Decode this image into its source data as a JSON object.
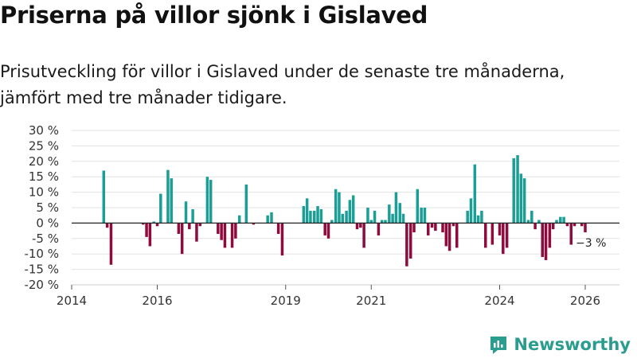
{
  "header": {
    "title": "Priserna på villor sjönk i Gislaved",
    "subtitle": "Prisutveckling för villor i Gislaved under de senaste tre månaderna, jämfört med tre månader tidigare."
  },
  "brand": {
    "name": "Newsworthy"
  },
  "colors": {
    "positive": "#1a9e95",
    "negative": "#8e0b3d",
    "grid": "#e3e3e3",
    "zero": "#222222",
    "brand": "#2a9d8f"
  },
  "chart_data": {
    "type": "bar",
    "title": "Priserna på villor sjönk i Gislaved",
    "xlabel": "",
    "ylabel": "",
    "xlim": [
      2014,
      2026.8
    ],
    "ylim": [
      -20,
      30
    ],
    "y_ticks": [
      30,
      25,
      20,
      15,
      10,
      5,
      0,
      -5,
      -10,
      -15,
      -20
    ],
    "y_tick_labels": [
      "30 %",
      "25 %",
      "20 %",
      "15 %",
      "10 %",
      "5 %",
      "0 %",
      "-5 %",
      "-10 %",
      "-15 %",
      "-20 %"
    ],
    "x_tick_labels": [
      {
        "year": 2014,
        "label": "2014"
      },
      {
        "year": 2016,
        "label": "2016"
      },
      {
        "year": 2019,
        "label": "2019"
      },
      {
        "year": 2021,
        "label": "2021"
      },
      {
        "year": 2024,
        "label": "2024"
      },
      {
        "year": 2026,
        "label": "2026"
      }
    ],
    "annotation": {
      "label": "−3 %",
      "x": 2026.0,
      "y": -3
    },
    "series": [
      {
        "name": "Prisutveckling",
        "points": [
          {
            "x": 2014.75,
            "y": 17
          },
          {
            "x": 2014.83,
            "y": -1.5
          },
          {
            "x": 2014.92,
            "y": -13.5
          },
          {
            "x": 2015.67,
            "y": -0.5
          },
          {
            "x": 2015.75,
            "y": -4.5
          },
          {
            "x": 2015.83,
            "y": -7.5
          },
          {
            "x": 2015.92,
            "y": 0.5
          },
          {
            "x": 2016.0,
            "y": -1
          },
          {
            "x": 2016.08,
            "y": 9.5
          },
          {
            "x": 2016.25,
            "y": 17.2
          },
          {
            "x": 2016.33,
            "y": 14.5
          },
          {
            "x": 2016.5,
            "y": -3.5
          },
          {
            "x": 2016.58,
            "y": -10
          },
          {
            "x": 2016.67,
            "y": 7
          },
          {
            "x": 2016.75,
            "y": -2
          },
          {
            "x": 2016.83,
            "y": 4.5
          },
          {
            "x": 2016.92,
            "y": -6
          },
          {
            "x": 2017.0,
            "y": -1
          },
          {
            "x": 2017.17,
            "y": 15
          },
          {
            "x": 2017.25,
            "y": 14
          },
          {
            "x": 2017.42,
            "y": -3.5
          },
          {
            "x": 2017.5,
            "y": -5.5
          },
          {
            "x": 2017.58,
            "y": -8
          },
          {
            "x": 2017.75,
            "y": -8
          },
          {
            "x": 2017.83,
            "y": -5
          },
          {
            "x": 2017.92,
            "y": 2.5
          },
          {
            "x": 2018.08,
            "y": 12.5
          },
          {
            "x": 2018.25,
            "y": -0.5
          },
          {
            "x": 2018.58,
            "y": 2.5
          },
          {
            "x": 2018.67,
            "y": 3.5
          },
          {
            "x": 2018.83,
            "y": -3.5
          },
          {
            "x": 2018.92,
            "y": -10.5
          },
          {
            "x": 2019.42,
            "y": 5.5
          },
          {
            "x": 2019.5,
            "y": 8
          },
          {
            "x": 2019.58,
            "y": 4
          },
          {
            "x": 2019.67,
            "y": 4
          },
          {
            "x": 2019.75,
            "y": 5.5
          },
          {
            "x": 2019.83,
            "y": 4.5
          },
          {
            "x": 2019.92,
            "y": -4
          },
          {
            "x": 2020.0,
            "y": -5
          },
          {
            "x": 2020.08,
            "y": 1
          },
          {
            "x": 2020.17,
            "y": 11
          },
          {
            "x": 2020.25,
            "y": 10
          },
          {
            "x": 2020.33,
            "y": 3
          },
          {
            "x": 2020.42,
            "y": 4
          },
          {
            "x": 2020.5,
            "y": 7.5
          },
          {
            "x": 2020.58,
            "y": 9
          },
          {
            "x": 2020.67,
            "y": -2
          },
          {
            "x": 2020.75,
            "y": -1.5
          },
          {
            "x": 2020.83,
            "y": -8
          },
          {
            "x": 2020.92,
            "y": 5
          },
          {
            "x": 2021.0,
            "y": 1
          },
          {
            "x": 2021.08,
            "y": 4
          },
          {
            "x": 2021.17,
            "y": -4
          },
          {
            "x": 2021.25,
            "y": 1
          },
          {
            "x": 2021.33,
            "y": 1
          },
          {
            "x": 2021.42,
            "y": 6
          },
          {
            "x": 2021.5,
            "y": 3
          },
          {
            "x": 2021.58,
            "y": 10
          },
          {
            "x": 2021.67,
            "y": 6.5
          },
          {
            "x": 2021.75,
            "y": 3
          },
          {
            "x": 2021.83,
            "y": -14
          },
          {
            "x": 2021.92,
            "y": -11.5
          },
          {
            "x": 2022.0,
            "y": -3
          },
          {
            "x": 2022.08,
            "y": 11
          },
          {
            "x": 2022.17,
            "y": 5
          },
          {
            "x": 2022.25,
            "y": 5
          },
          {
            "x": 2022.33,
            "y": -4
          },
          {
            "x": 2022.42,
            "y": -1.5
          },
          {
            "x": 2022.5,
            "y": -2.5
          },
          {
            "x": 2022.67,
            "y": -3
          },
          {
            "x": 2022.75,
            "y": -7.5
          },
          {
            "x": 2022.83,
            "y": -9
          },
          {
            "x": 2022.92,
            "y": -1
          },
          {
            "x": 2023.0,
            "y": -8
          },
          {
            "x": 2023.25,
            "y": 4
          },
          {
            "x": 2023.33,
            "y": 8
          },
          {
            "x": 2023.42,
            "y": 19
          },
          {
            "x": 2023.5,
            "y": 2.5
          },
          {
            "x": 2023.58,
            "y": 4
          },
          {
            "x": 2023.67,
            "y": -8
          },
          {
            "x": 2023.83,
            "y": -7
          },
          {
            "x": 2024.0,
            "y": -4
          },
          {
            "x": 2024.08,
            "y": -10
          },
          {
            "x": 2024.17,
            "y": -8
          },
          {
            "x": 2024.33,
            "y": 21
          },
          {
            "x": 2024.42,
            "y": 22
          },
          {
            "x": 2024.5,
            "y": 16
          },
          {
            "x": 2024.58,
            "y": 14.5
          },
          {
            "x": 2024.67,
            "y": 1
          },
          {
            "x": 2024.75,
            "y": 4
          },
          {
            "x": 2024.83,
            "y": -2
          },
          {
            "x": 2024.92,
            "y": 1
          },
          {
            "x": 2025.0,
            "y": -11
          },
          {
            "x": 2025.08,
            "y": -12
          },
          {
            "x": 2025.17,
            "y": -8
          },
          {
            "x": 2025.25,
            "y": -2
          },
          {
            "x": 2025.33,
            "y": 1
          },
          {
            "x": 2025.42,
            "y": 2
          },
          {
            "x": 2025.5,
            "y": 2
          },
          {
            "x": 2025.58,
            "y": -1
          },
          {
            "x": 2025.67,
            "y": -7
          },
          {
            "x": 2025.75,
            "y": -1
          },
          {
            "x": 2025.92,
            "y": -1
          },
          {
            "x": 2026.0,
            "y": -3
          }
        ]
      }
    ]
  }
}
